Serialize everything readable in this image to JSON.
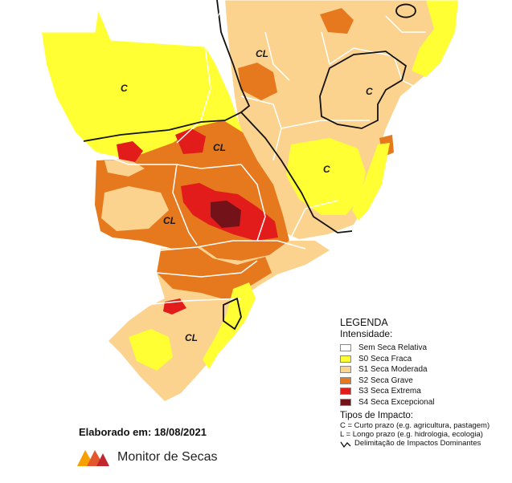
{
  "map": {
    "region_labels": [
      "C",
      "CL",
      "C",
      "CL",
      "C",
      "CL",
      "CL"
    ],
    "colors": {
      "none": "#ffffff",
      "s0": "#ffff33",
      "s1": "#fcd38e",
      "s2": "#e6781e",
      "s3": "#e21b1b",
      "s4": "#731218",
      "boundary": "#111111",
      "state_lines": "#ffffff"
    }
  },
  "legend": {
    "title": "LEGENDA",
    "subtitle": "Intensidade:",
    "items": [
      {
        "label": "Sem Seca Relativa",
        "color": "#ffffff"
      },
      {
        "label": "S0 Seca Fraca",
        "color": "#ffff33"
      },
      {
        "label": "S1 Seca Moderada",
        "color": "#fcd38e"
      },
      {
        "label": "S2 Seca Grave",
        "color": "#e6781e"
      },
      {
        "label": "S3 Seca Extrema",
        "color": "#e21b1b"
      },
      {
        "label": "S4 Seca Excepcional",
        "color": "#731218"
      }
    ],
    "impact_title": "Tipos de Impacto:",
    "impact_short": "C = Curto prazo (e.g. agricultura, pastagem)",
    "impact_long": "L = Longo prazo (e.g. hidrologia, ecologia)",
    "boundary_label": "Delimitação de Impactos Dominantes"
  },
  "footer": {
    "elaborado": "Elaborado em: 18/08/2021",
    "brand": "Monitor de Secas",
    "logo_icon": "monitor-de-secas-logo-icon"
  }
}
